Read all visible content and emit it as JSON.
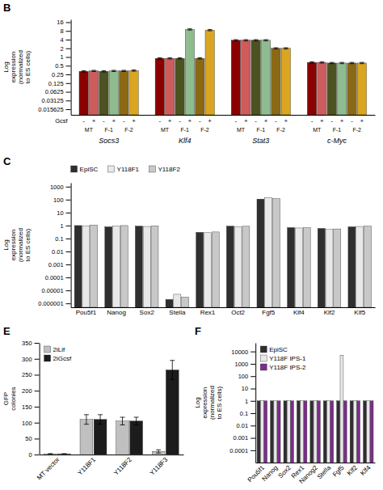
{
  "chart_data": [
    {
      "type": "bar",
      "title": "B",
      "ylabel": "Log\nexpression\n(normalized\nto ES cells)",
      "categories": [
        "Socs3",
        "Klf4",
        "Stat3",
        "c-Myc"
      ],
      "series": [
        {
          "color": "#8B0000",
          "values": [
            0.32,
            0.9,
            3.8,
            0.65
          ],
          "errors": [
            0.016,
            0.045,
            0.19,
            0.0325
          ]
        },
        {
          "color": "#CD5C5C",
          "values": [
            0.33,
            0.9,
            3.8,
            0.65
          ],
          "errors": [
            0.0165,
            0.045,
            0.19,
            0.0325
          ]
        },
        {
          "color": "#4B5320",
          "values": [
            0.32,
            0.9,
            3.8,
            0.62
          ],
          "errors": [
            0.016,
            0.045,
            0.19,
            0.031
          ]
        },
        {
          "color": "#8FBC8F",
          "values": [
            0.33,
            9.0,
            3.8,
            0.62
          ],
          "errors": [
            0.0165,
            0.45,
            0.19,
            0.031
          ]
        },
        {
          "color": "#8B6914",
          "values": [
            0.33,
            0.9,
            2.0,
            0.62
          ],
          "errors": [
            0.0165,
            0.045,
            0.1,
            0.031
          ]
        },
        {
          "color": "#DAA520",
          "values": [
            0.34,
            8.5,
            2.0,
            0.62
          ],
          "errors": [
            0.017,
            0.425,
            0.1,
            0.031
          ]
        }
      ],
      "annotations": {
        "row_label": "Gcsf",
        "signs": [
          "-",
          "+",
          "-",
          "+",
          "-",
          "+"
        ],
        "groups": [
          "MT",
          "F-1",
          "F-2"
        ]
      },
      "log": "y",
      "ylim": [
        0.01,
        20
      ],
      "yticks": [
        0.015625,
        0.03125,
        0.0625,
        0.125,
        0.25,
        0.5,
        1,
        2,
        4,
        8,
        16
      ]
    },
    {
      "type": "bar",
      "title": "C",
      "ylabel": "Log\nexpression\n(normalized\nto ES cells)",
      "categories": [
        "Pou5f1",
        "Nanog",
        "Sox2",
        "Stella",
        "Rex1",
        "Oct2",
        "Fgf5",
        "Klf4",
        "Klf2",
        "Klf5"
      ],
      "series": [
        {
          "name": "EpiSC",
          "color": "#2F2F2F",
          "values": [
            1.0,
            0.8,
            0.9,
            2e-06,
            0.3,
            0.9,
            110,
            0.7,
            0.6,
            0.8
          ]
        },
        {
          "name": "Y118F1",
          "color": "#E8E8E8",
          "values": [
            0.9,
            0.9,
            0.85,
            5e-06,
            0.28,
            0.8,
            135,
            0.65,
            0.5,
            0.85
          ]
        },
        {
          "name": "Y118F2",
          "color": "#C8C8C8",
          "values": [
            1.1,
            1.0,
            0.95,
            3e-06,
            0.32,
            0.88,
            120,
            0.68,
            0.55,
            0.9
          ]
        }
      ],
      "log": "y",
      "ylim": [
        5e-07,
        2000
      ],
      "yticks": [
        1e-06,
        1e-05,
        0.0001,
        0.001,
        0.01,
        0.1,
        1,
        10,
        100,
        1000
      ],
      "legend": "top"
    },
    {
      "type": "bar",
      "title": "E",
      "ylabel": "GFP\ncolonies",
      "categories": [
        "MT vector",
        "Y118F1",
        "Y118F2",
        "Y118F3"
      ],
      "series": [
        {
          "name": "2iLif",
          "color": "#C0C0C0",
          "values": [
            2,
            110,
            105,
            10
          ],
          "errors": [
            1,
            15,
            12,
            5
          ]
        },
        {
          "name": "2iGcsf",
          "color": "#1C1C1C",
          "values": [
            2,
            110,
            105,
            265
          ],
          "errors": [
            1,
            15,
            12,
            30
          ]
        }
      ],
      "ylim": [
        0,
        350
      ],
      "yticks": [
        0,
        50,
        100,
        150,
        200,
        250,
        300,
        350
      ],
      "legend": "top-left"
    },
    {
      "type": "bar",
      "title": "F",
      "ylabel": "Log\nexpression\n(normalized\nto ES cells)",
      "categories": [
        "Pou5f1",
        "Nanog",
        "Sox2",
        "Rex1",
        "Nanog2",
        "Stella",
        "Fgf5",
        "Klf2",
        "Klf4"
      ],
      "series": [
        {
          "name": "EpiSC",
          "color": "#2F2F2F",
          "values": [
            1.0,
            1.0,
            1.0,
            1.0,
            1.0,
            1.0,
            1.0,
            1.0,
            1.0
          ]
        },
        {
          "name": "Y118F IPS-1",
          "color": "#E8E8E8",
          "values": [
            1.0,
            1.0,
            1.0,
            1.0,
            1.0,
            1.0,
            5000,
            1.0,
            1.0
          ]
        },
        {
          "name": "Y118F IPS-2",
          "color": "#7B2D8B",
          "values": [
            1.0,
            1.0,
            1.0,
            1.0,
            1.0,
            1.0,
            1.0,
            1.0,
            1.0
          ]
        }
      ],
      "log": "y",
      "ylim": [
        1e-05,
        50000
      ],
      "yticks": [
        0.0001,
        0.001,
        0.01,
        0.1,
        1,
        10,
        100,
        1000,
        10000
      ],
      "legend": "top-left"
    }
  ]
}
